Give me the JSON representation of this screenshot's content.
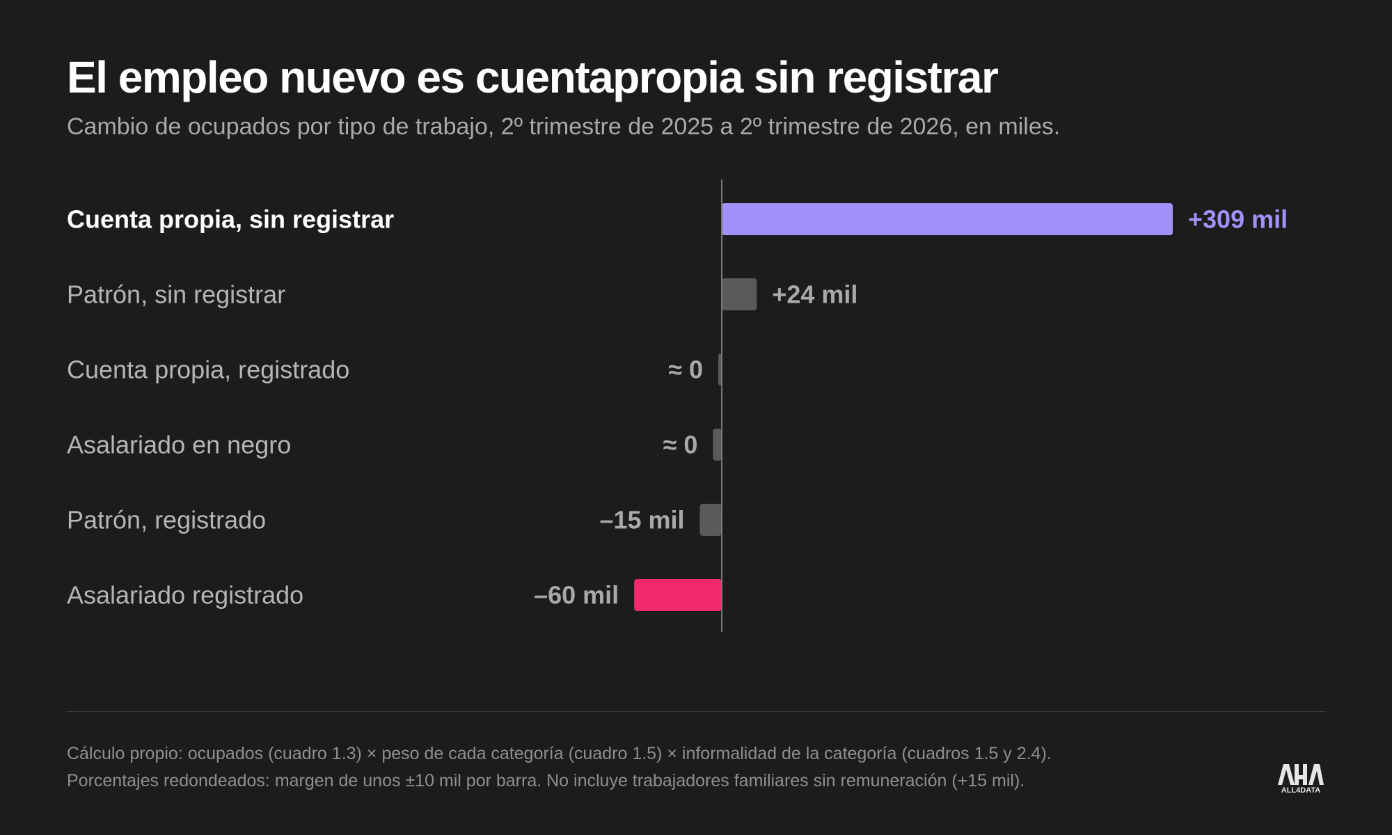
{
  "header": {
    "title": "El empleo nuevo es cuentapropia sin registrar",
    "subtitle": "Cambio de ocupados por tipo de trabajo, 2º trimestre de 2025 a 2º trimestre de 2026, en miles."
  },
  "chart_data": {
    "type": "bar",
    "orientation": "horizontal",
    "categories": [
      "Cuenta propia, sin registrar",
      "Patrón, sin registrar",
      "Cuenta propia, registrado",
      "Asalariado en negro",
      "Patrón, registrado",
      "Asalariado registrado"
    ],
    "values": [
      309,
      24,
      -2,
      -6,
      -15,
      -60
    ],
    "data_labels": [
      "+309 mil",
      "+24 mil",
      "≈ 0",
      "≈ 0",
      "–15 mil",
      "–60 mil"
    ],
    "colors": [
      "#a291fb",
      "#5a5a5a",
      "#5a5a5a",
      "#5a5a5a",
      "#5a5a5a",
      "#f2296a"
    ],
    "label_colors": [
      "#a291fb",
      "#a9a9a9",
      "#a9a9a9",
      "#a9a9a9",
      "#a9a9a9",
      "#a9a9a9"
    ],
    "highlight_index": 0,
    "xlim": [
      -450,
      450
    ],
    "unit": "miles",
    "grid": false,
    "zero_line": true
  },
  "footer": {
    "note_line1": "Cálculo propio: ocupados (cuadro 1.3) × peso de cada categoría (cuadro 1.5) × informalidad de la categoría (cuadros 1.5 y 2.4).",
    "note_line2": "Porcentajes redondeados: margen de unos ±10 mil por barra. No incluye trabajadores familiares sin remuneración (+15 mil).",
    "logo_text": "ALL4DATA"
  },
  "colors": {
    "background": "#1c1c1c",
    "accent": "#a291fb",
    "negative": "#f2296a",
    "neutral_bar": "#5a5a5a"
  }
}
